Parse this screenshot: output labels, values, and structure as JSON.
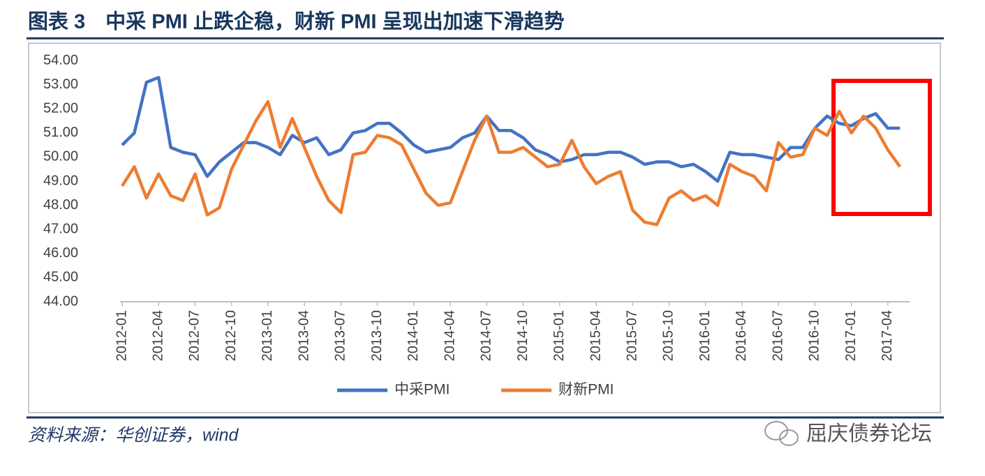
{
  "chart_data": {
    "type": "line",
    "title": "图表 3　中采 PMI 止跌企稳，财新 PMI 呈现出加速下滑趋势",
    "source": "资料来源：华创证券，wind",
    "watermark": "屈庆债券论坛",
    "categories": [
      "2012-01",
      null,
      null,
      "2012-04",
      null,
      null,
      "2012-07",
      null,
      null,
      "2012-10",
      null,
      null,
      "2013-01",
      null,
      null,
      "2013-04",
      null,
      null,
      "2013-07",
      null,
      null,
      "2013-10",
      null,
      null,
      "2014-01",
      null,
      null,
      "2014-04",
      null,
      null,
      "2014-07",
      null,
      null,
      "2014-10",
      null,
      null,
      "2015-01",
      null,
      null,
      "2015-04",
      null,
      null,
      "2015-07",
      null,
      null,
      "2015-10",
      null,
      null,
      "2016-01",
      null,
      null,
      "2016-04",
      null,
      null,
      "2016-07",
      null,
      null,
      "2016-10",
      null,
      null,
      "2017-01",
      null,
      null,
      "2017-04",
      null
    ],
    "series": [
      {
        "name": "中采PMI",
        "color": "#4472c4",
        "values": [
          50.5,
          51.0,
          53.1,
          53.3,
          50.4,
          50.2,
          50.1,
          49.2,
          49.8,
          50.2,
          50.6,
          50.6,
          50.4,
          50.1,
          50.9,
          50.6,
          50.8,
          50.1,
          50.3,
          51.0,
          51.1,
          51.4,
          51.4,
          51.0,
          50.5,
          50.2,
          50.3,
          50.4,
          50.8,
          51.0,
          51.7,
          51.1,
          51.1,
          50.8,
          50.3,
          50.1,
          49.8,
          49.9,
          50.1,
          50.1,
          50.2,
          50.2,
          50.0,
          49.7,
          49.8,
          49.8,
          49.6,
          49.7,
          49.4,
          49.0,
          50.2,
          50.1,
          50.1,
          50.0,
          49.9,
          50.4,
          50.4,
          51.2,
          51.7,
          51.4,
          51.3,
          51.6,
          51.8,
          51.2,
          51.2
        ]
      },
      {
        "name": "财新PMI",
        "color": "#ed7d31",
        "values": [
          48.8,
          49.6,
          48.3,
          49.3,
          48.4,
          48.2,
          49.3,
          47.6,
          47.9,
          49.5,
          50.5,
          51.5,
          52.3,
          50.4,
          51.6,
          50.4,
          49.2,
          48.2,
          47.7,
          50.1,
          50.2,
          50.9,
          50.8,
          50.5,
          49.5,
          48.5,
          48.0,
          48.1,
          49.4,
          50.7,
          51.7,
          50.2,
          50.2,
          50.4,
          50.0,
          49.6,
          49.7,
          50.7,
          49.6,
          48.9,
          49.2,
          49.4,
          47.8,
          47.3,
          47.2,
          48.3,
          48.6,
          48.2,
          48.4,
          48.0,
          49.7,
          49.4,
          49.2,
          48.6,
          50.6,
          50.0,
          50.1,
          51.2,
          50.9,
          51.9,
          51.0,
          51.7,
          51.2,
          50.3,
          49.6
        ]
      }
    ],
    "ylim": [
      44,
      54
    ],
    "yticks": [
      {
        "value": 44,
        "label": "44.00"
      },
      {
        "value": 45,
        "label": "45.00"
      },
      {
        "value": 46,
        "label": "46.00"
      },
      {
        "value": 47,
        "label": "47.00"
      },
      {
        "value": 48,
        "label": "48.00"
      },
      {
        "value": 49,
        "label": "49.00"
      },
      {
        "value": 50,
        "label": "50.00"
      },
      {
        "value": 51,
        "label": "51.00"
      },
      {
        "value": 52,
        "label": "52.00"
      },
      {
        "value": 53,
        "label": "53.00"
      },
      {
        "value": 54,
        "label": "54.00"
      }
    ],
    "grid": false,
    "legend": "bottom"
  }
}
